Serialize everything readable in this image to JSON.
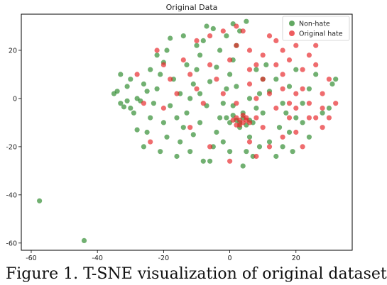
{
  "colors": {
    "non_hate": "#2e8b2e",
    "original_hate": "#e8262a",
    "axes": "#000000",
    "background": "#ffffff"
  },
  "chart_data": {
    "type": "scatter",
    "title": "Original Data",
    "xlabel": "",
    "ylabel": "",
    "xlim": [
      -63,
      37
    ],
    "ylim": [
      -63,
      35
    ],
    "xticks": [
      -60,
      -40,
      -20,
      0,
      20
    ],
    "yticks": [
      -60,
      -40,
      -20,
      0,
      20
    ],
    "grid": false,
    "legend_position": "top-right",
    "series": [
      {
        "name": "Non-hate",
        "color": "#2e8b2e",
        "points": [
          [
            -57.5,
            -42.5
          ],
          [
            -44,
            -59
          ],
          [
            -33,
            -2
          ],
          [
            -32,
            -3.5
          ],
          [
            -31,
            -1
          ],
          [
            -30,
            -4
          ],
          [
            -34,
            3
          ],
          [
            -29,
            -6
          ],
          [
            -33,
            10
          ],
          [
            -31,
            5
          ],
          [
            -28,
            -13
          ],
          [
            -26,
            -20
          ],
          [
            -25,
            -14
          ],
          [
            -24,
            -8
          ],
          [
            -23,
            -2
          ],
          [
            -22,
            4
          ],
          [
            -21,
            10
          ],
          [
            -20,
            15
          ],
          [
            -19,
            20
          ],
          [
            -18,
            25
          ],
          [
            -16,
            -24
          ],
          [
            -15,
            -18
          ],
          [
            -14,
            -12
          ],
          [
            -13,
            -6
          ],
          [
            -12,
            0
          ],
          [
            -11,
            6
          ],
          [
            -10,
            12
          ],
          [
            -9,
            18
          ],
          [
            -8,
            24
          ],
          [
            -7,
            30
          ],
          [
            -6,
            -26
          ],
          [
            -5,
            -20
          ],
          [
            -4,
            -14
          ],
          [
            -3,
            -8
          ],
          [
            -2,
            -2
          ],
          [
            -1,
            4
          ],
          [
            0,
            10
          ],
          [
            1,
            16
          ],
          [
            2,
            22
          ],
          [
            3,
            28
          ],
          [
            4,
            -28
          ],
          [
            5,
            -22
          ],
          [
            6,
            -16
          ],
          [
            7,
            -10
          ],
          [
            8,
            -4
          ],
          [
            9,
            2
          ],
          [
            10,
            8
          ],
          [
            11,
            14
          ],
          [
            12,
            -18
          ],
          [
            14,
            -24
          ],
          [
            16,
            -20
          ],
          [
            18,
            -14
          ],
          [
            20,
            -8
          ],
          [
            22,
            -2
          ],
          [
            24,
            4
          ],
          [
            26,
            10
          ],
          [
            28,
            -6
          ],
          [
            30,
            -4
          ],
          [
            31,
            6
          ],
          [
            32,
            8
          ],
          [
            2,
            -9
          ],
          [
            3,
            -10
          ],
          [
            4,
            -8
          ],
          [
            5,
            -11
          ],
          [
            1,
            -7
          ],
          [
            0,
            -10
          ],
          [
            6,
            -9
          ],
          [
            3,
            -12
          ],
          [
            4,
            -6
          ],
          [
            -1,
            -8
          ],
          [
            -35,
            2
          ],
          [
            -27,
            -1
          ],
          [
            -25,
            3
          ],
          [
            -20,
            -10
          ],
          [
            -18,
            -3
          ],
          [
            -17,
            8
          ],
          [
            -15,
            2
          ],
          [
            -13,
            14
          ],
          [
            -11,
            -15
          ],
          [
            -9,
            -10
          ],
          [
            -7,
            -3
          ],
          [
            -6,
            7
          ],
          [
            -4,
            13
          ],
          [
            -3,
            20
          ],
          [
            -2,
            -18
          ],
          [
            0,
            -22
          ],
          [
            1,
            -3
          ],
          [
            2,
            5
          ],
          [
            6,
            0
          ],
          [
            8,
            12
          ],
          [
            10,
            -6
          ],
          [
            12,
            3
          ],
          [
            14,
            8
          ],
          [
            16,
            -2
          ],
          [
            18,
            5
          ],
          [
            20,
            12
          ],
          [
            22,
            -10
          ],
          [
            24,
            -16
          ],
          [
            -22,
            18
          ],
          [
            -24,
            12
          ],
          [
            -26,
            6
          ],
          [
            -28,
            0
          ],
          [
            -30,
            8
          ],
          [
            -19,
            -16
          ],
          [
            -21,
            -22
          ],
          [
            -12,
            -22
          ],
          [
            -8,
            -26
          ],
          [
            -5,
            29
          ],
          [
            -1,
            26
          ],
          [
            1,
            31
          ],
          [
            5,
            32
          ],
          [
            -14,
            26
          ],
          [
            -10,
            22
          ],
          [
            -16,
            -8
          ],
          [
            -9,
            2
          ],
          [
            7,
            -24
          ],
          [
            9,
            -20
          ],
          [
            15,
            -12
          ],
          [
            17,
            -6
          ],
          [
            19,
            -22
          ]
        ]
      },
      {
        "name": "Original hate",
        "color": "#e8262a",
        "points": [
          [
            3,
            -9
          ],
          [
            4,
            -10
          ],
          [
            2,
            -8
          ],
          [
            5,
            -9
          ],
          [
            3,
            -11
          ],
          [
            4,
            -7
          ],
          [
            1,
            -9
          ],
          [
            6,
            -10
          ],
          [
            2,
            -11
          ],
          [
            5,
            -8
          ],
          [
            -22,
            20
          ],
          [
            -20,
            14
          ],
          [
            -18,
            8
          ],
          [
            -16,
            2
          ],
          [
            -14,
            16
          ],
          [
            -12,
            10
          ],
          [
            -10,
            4
          ],
          [
            -8,
            -2
          ],
          [
            -6,
            14
          ],
          [
            -4,
            8
          ],
          [
            -2,
            2
          ],
          [
            0,
            16
          ],
          [
            2,
            22
          ],
          [
            4,
            28
          ],
          [
            6,
            20
          ],
          [
            8,
            14
          ],
          [
            10,
            8
          ],
          [
            12,
            2
          ],
          [
            14,
            -4
          ],
          [
            16,
            10
          ],
          [
            18,
            16
          ],
          [
            20,
            22
          ],
          [
            22,
            4
          ],
          [
            24,
            -2
          ],
          [
            26,
            -8
          ],
          [
            28,
            2
          ],
          [
            30,
            8
          ],
          [
            32,
            -2
          ],
          [
            14,
            24
          ],
          [
            18,
            26
          ],
          [
            6,
            -18
          ],
          [
            8,
            -24
          ],
          [
            10,
            -12
          ],
          [
            12,
            -20
          ],
          [
            16,
            -16
          ],
          [
            20,
            -14
          ],
          [
            22,
            -20
          ],
          [
            24,
            -8
          ],
          [
            26,
            14
          ],
          [
            28,
            -12
          ],
          [
            -28,
            10
          ],
          [
            -26,
            -2
          ],
          [
            -24,
            -18
          ],
          [
            -20,
            -4
          ],
          [
            -12,
            -12
          ],
          [
            -6,
            -20
          ],
          [
            0,
            -26
          ],
          [
            2,
            -2
          ],
          [
            6,
            6
          ],
          [
            8,
            0
          ],
          [
            10,
            18
          ],
          [
            12,
            26
          ],
          [
            16,
            4
          ],
          [
            18,
            -2
          ],
          [
            20,
            2
          ],
          [
            22,
            12
          ],
          [
            24,
            18
          ],
          [
            26,
            22
          ],
          [
            28,
            -4
          ],
          [
            30,
            -8
          ],
          [
            -10,
            24
          ],
          [
            -6,
            26
          ],
          [
            -2,
            28
          ],
          [
            2,
            30
          ],
          [
            6,
            12
          ],
          [
            8,
            -8
          ],
          [
            14,
            14
          ],
          [
            16,
            20
          ],
          [
            18,
            -8
          ],
          [
            20,
            -4
          ]
        ]
      }
    ]
  },
  "caption": "Figure 1. T-SNE visualization of original dataset"
}
